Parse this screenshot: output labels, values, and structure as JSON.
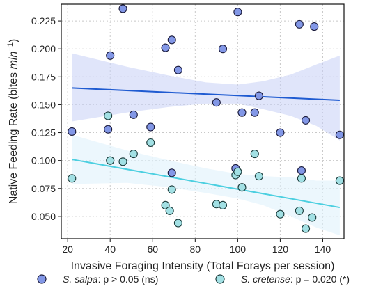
{
  "chart_data": {
    "type": "scatter",
    "xlabel": "Invasive Foraging Intensity (Total Forays per session)",
    "ylabel_main": "Native Feeding Rate (bites ",
    "ylabel_unit": "min",
    "ylabel_exp": "−1",
    "ylabel_close": ")",
    "xlim": [
      17,
      150
    ],
    "ylim": [
      0.03,
      0.24
    ],
    "xticks": [
      20,
      40,
      60,
      80,
      100,
      120,
      140
    ],
    "yticks": [
      0.05,
      0.075,
      0.1,
      0.125,
      0.15,
      0.175,
      0.2,
      0.225
    ],
    "grid": true,
    "series": [
      {
        "name": "S. salpa",
        "legend_species": "S. salpa",
        "legend_stat": ": p > 0.05 (ns)",
        "color": "#8297e6",
        "edge": "#1a1a3a",
        "line_color": "#1f5bd1",
        "band_color": "#c7d0f5",
        "fit": {
          "x0": 22,
          "y0": 0.165,
          "x1": 148,
          "y1": 0.154
        },
        "band": {
          "x": [
            22,
            48,
            68,
            85,
            100,
            112,
            125,
            137,
            148
          ],
          "upper": [
            0.196,
            0.184,
            0.176,
            0.17,
            0.168,
            0.171,
            0.177,
            0.186,
            0.194
          ],
          "lower": [
            0.135,
            0.143,
            0.148,
            0.151,
            0.151,
            0.146,
            0.14,
            0.131,
            0.118
          ]
        },
        "points": [
          {
            "x": 22,
            "y": 0.126
          },
          {
            "x": 39,
            "y": 0.128
          },
          {
            "x": 40,
            "y": 0.194
          },
          {
            "x": 46,
            "y": 0.236
          },
          {
            "x": 51,
            "y": 0.141
          },
          {
            "x": 59,
            "y": 0.13
          },
          {
            "x": 66,
            "y": 0.201
          },
          {
            "x": 69,
            "y": 0.208
          },
          {
            "x": 69,
            "y": 0.089
          },
          {
            "x": 72,
            "y": 0.181
          },
          {
            "x": 90,
            "y": 0.152
          },
          {
            "x": 93,
            "y": 0.2
          },
          {
            "x": 99,
            "y": 0.093
          },
          {
            "x": 100,
            "y": 0.233
          },
          {
            "x": 102,
            "y": 0.143
          },
          {
            "x": 108,
            "y": 0.143
          },
          {
            "x": 110,
            "y": 0.158
          },
          {
            "x": 120,
            "y": 0.125
          },
          {
            "x": 129,
            "y": 0.222
          },
          {
            "x": 130,
            "y": 0.091
          },
          {
            "x": 132,
            "y": 0.136
          },
          {
            "x": 136,
            "y": 0.22
          },
          {
            "x": 148,
            "y": 0.123
          }
        ]
      },
      {
        "name": "S. cretense",
        "legend_species": "S. cretense",
        "legend_stat": ": p = 0.020 (*)",
        "color": "#a2e0e4",
        "edge": "#1a3a3a",
        "line_color": "#4ccfe0",
        "band_color": "#dff1fb",
        "fit": {
          "x0": 22,
          "y0": 0.101,
          "x1": 148,
          "y1": 0.058
        },
        "band": {
          "x": [
            22,
            48,
            68,
            85,
            100,
            112,
            125,
            137,
            148
          ],
          "upper": [
            0.123,
            0.109,
            0.1,
            0.093,
            0.088,
            0.086,
            0.085,
            0.082,
            0.082
          ],
          "lower": [
            0.079,
            0.08,
            0.076,
            0.071,
            0.066,
            0.06,
            0.05,
            0.04,
            0.033
          ]
        },
        "points": [
          {
            "x": 22,
            "y": 0.084
          },
          {
            "x": 39,
            "y": 0.14
          },
          {
            "x": 40,
            "y": 0.1
          },
          {
            "x": 46,
            "y": 0.099
          },
          {
            "x": 51,
            "y": 0.106
          },
          {
            "x": 59,
            "y": 0.116
          },
          {
            "x": 66,
            "y": 0.06
          },
          {
            "x": 68,
            "y": 0.055
          },
          {
            "x": 69,
            "y": 0.074
          },
          {
            "x": 72,
            "y": 0.044
          },
          {
            "x": 90,
            "y": 0.061
          },
          {
            "x": 93,
            "y": 0.06
          },
          {
            "x": 99,
            "y": 0.087
          },
          {
            "x": 100,
            "y": 0.09
          },
          {
            "x": 102,
            "y": 0.076
          },
          {
            "x": 108,
            "y": 0.106
          },
          {
            "x": 110,
            "y": 0.086
          },
          {
            "x": 120,
            "y": 0.052
          },
          {
            "x": 129,
            "y": 0.055
          },
          {
            "x": 130,
            "y": 0.084
          },
          {
            "x": 132,
            "y": 0.039
          },
          {
            "x": 135,
            "y": 0.049
          },
          {
            "x": 148,
            "y": 0.082
          }
        ]
      }
    ],
    "legend_position": "bottom"
  }
}
